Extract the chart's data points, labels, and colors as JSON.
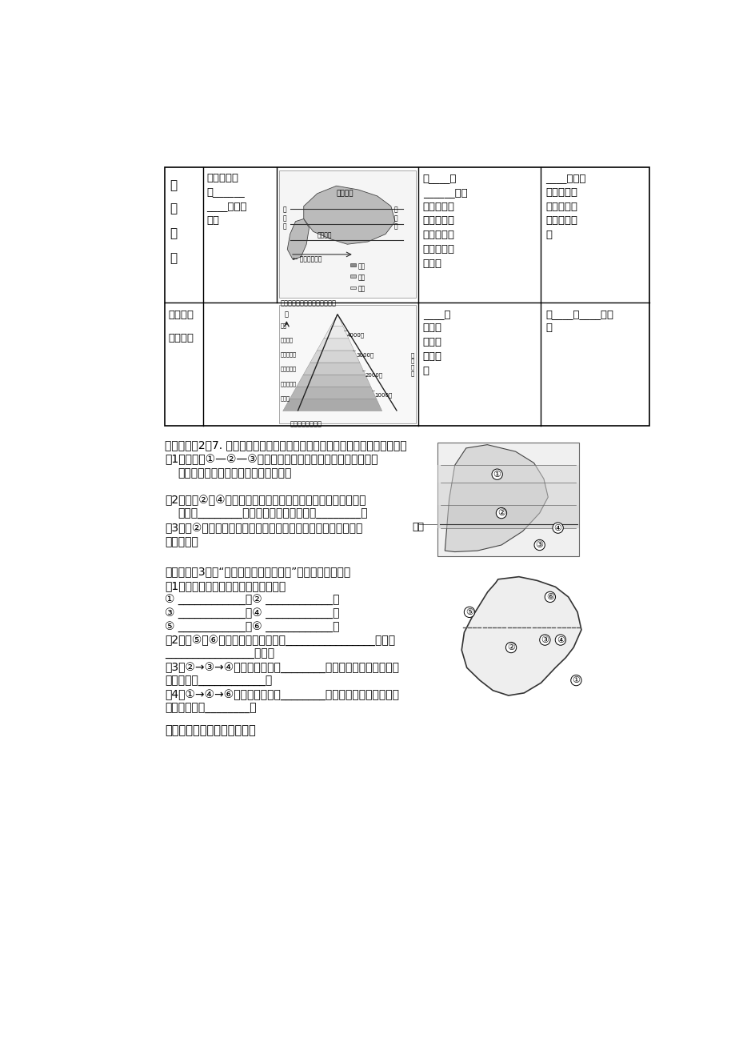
{
  "bg_color": "#ffffff",
  "text_color": "#000000",
  "section2_title": "【考例探究2】7. 读非洲大陆部分地区自然带分布图（右图），完成下列问题。",
  "section3_title": "【考例探究3】读“澳大利亚自然带分布图”，完成下列各题。",
  "section4_title": "探究点三：垂直地域分异规律"
}
